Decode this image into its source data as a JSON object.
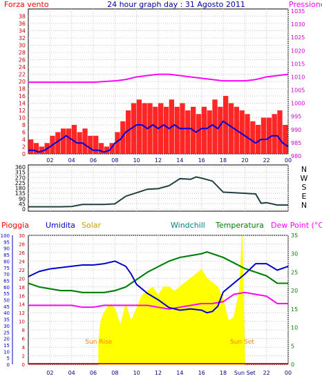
{
  "header": {
    "left_label": "Forza vento",
    "title": "24 hour graph day : 31 Agosto 2011",
    "right_label": "Pressione"
  },
  "colors": {
    "wind": "#ff0000",
    "wind_avg": "#0000dd",
    "pressure": "#ff00ff",
    "direction": "#1f3f3f",
    "rain": "#ff0000",
    "humidity": "#0000cc",
    "solar": "#ffff00",
    "solar_label": "#c8a000",
    "windchill": "#008080",
    "temperature": "#008000",
    "dewpoint": "#ff00ff",
    "sun_event": "#ff8000",
    "frame": "#000000",
    "grid": "#c8c8c8"
  },
  "compass": [
    "N",
    "W",
    "S",
    "E",
    "N"
  ],
  "chart_data": [
    {
      "type": "line",
      "panel": "wind_pressure",
      "x_unit": "hour",
      "xlim": [
        0,
        24
      ],
      "x_ticks": [
        "02",
        "04",
        "06",
        "08",
        "10",
        "12",
        "14",
        "16",
        "18",
        "20",
        "22",
        "00"
      ],
      "ylim_left": [
        0,
        40
      ],
      "y_ticks_left": [
        "0",
        "2",
        "4",
        "6",
        "8",
        "10",
        "12",
        "14",
        "16",
        "18",
        "20",
        "22",
        "24",
        "26",
        "28",
        "30",
        "32",
        "34",
        "36",
        "38"
      ],
      "ylim_right": [
        980,
        1035
      ],
      "y_ticks_right": [
        "980",
        "985",
        "990",
        "995",
        "1000",
        "1005",
        "1010",
        "1015",
        "1020",
        "1025",
        "1030",
        "1035"
      ],
      "series": [
        {
          "name": "Forza vento",
          "axis": "left",
          "x": [
            0,
            0.5,
            1,
            1.5,
            2,
            2.5,
            3,
            3.5,
            4,
            4.5,
            5,
            5.5,
            6,
            6.5,
            7,
            7.5,
            8,
            8.5,
            9,
            9.5,
            10,
            10.5,
            11,
            11.5,
            12,
            12.5,
            13,
            13.5,
            14,
            14.5,
            15,
            15.5,
            16,
            16.5,
            17,
            17.5,
            18,
            18.5,
            19,
            19.5,
            20,
            20.5,
            21,
            21.5,
            22,
            22.5,
            23,
            23.5,
            24
          ],
          "values": [
            4,
            3,
            2,
            3,
            5,
            6,
            7,
            7,
            8,
            6,
            7,
            5,
            5,
            3,
            2,
            3,
            6,
            9,
            12,
            14,
            15,
            14,
            14,
            13,
            14,
            13,
            15,
            13,
            14,
            12,
            13,
            11,
            13,
            12,
            15,
            13,
            16,
            14,
            13,
            12,
            11,
            9,
            8,
            10,
            10,
            11,
            12,
            8,
            6
          ]
        },
        {
          "name": "",
          "axis": "left",
          "x": [
            0,
            0.5,
            1,
            1.5,
            2,
            2.5,
            3,
            3.5,
            4,
            4.5,
            5,
            5.5,
            6,
            6.5,
            7,
            7.5,
            8,
            8.5,
            9,
            9.5,
            10,
            10.5,
            11,
            11.5,
            12,
            12.5,
            13,
            13.5,
            14,
            14.5,
            15,
            15.5,
            16,
            16.5,
            17,
            17.5,
            18,
            18.5,
            19,
            19.5,
            20,
            20.5,
            21,
            21.5,
            22,
            22.5,
            23,
            23.5,
            24
          ],
          "values": [
            1,
            1,
            0.5,
            1,
            2,
            3,
            4,
            5,
            4,
            3,
            3,
            2,
            1,
            1,
            0.5,
            1,
            3,
            4,
            6,
            7,
            8,
            8,
            7,
            8,
            7,
            8,
            7,
            8,
            7,
            7,
            7,
            6,
            7,
            7,
            8,
            7,
            9,
            8,
            7,
            6,
            5,
            4,
            3,
            4,
            4,
            5,
            5,
            3,
            2
          ]
        },
        {
          "name": "Pressione",
          "axis": "right",
          "x": [
            0,
            2,
            4,
            6,
            8,
            9,
            10,
            11,
            12,
            13,
            14,
            15,
            16,
            17,
            18,
            19,
            20,
            21,
            22,
            23,
            24
          ],
          "values": [
            1008,
            1008,
            1008,
            1008,
            1008.5,
            1009,
            1010,
            1010.5,
            1011,
            1011,
            1010.5,
            1010,
            1009.5,
            1009,
            1008.5,
            1008.5,
            1008.5,
            1009,
            1010,
            1010.5,
            1011
          ]
        }
      ]
    },
    {
      "type": "line",
      "panel": "wind_direction",
      "x_unit": "hour",
      "xlim": [
        0,
        24
      ],
      "ylim": [
        0,
        360
      ],
      "y_ticks": [
        "0",
        "45",
        "90",
        "135",
        "180",
        "225",
        "270",
        "315",
        "360"
      ],
      "series": [
        {
          "name": "",
          "x": [
            0,
            1,
            2,
            3,
            4,
            5,
            6,
            7,
            8,
            9,
            10,
            11,
            12,
            13,
            14,
            15,
            15.5,
            16,
            17,
            18,
            19,
            20,
            21,
            21.5,
            22,
            23,
            24
          ],
          "values": [
            20,
            20,
            20,
            20,
            22,
            40,
            40,
            40,
            45,
            110,
            140,
            170,
            175,
            200,
            260,
            255,
            275,
            265,
            240,
            145,
            140,
            135,
            130,
            50,
            55,
            35,
            35
          ]
        }
      ]
    },
    {
      "type": "line",
      "panel": "weather",
      "x_unit": "hour",
      "xlim": [
        0,
        24
      ],
      "x_ticks": [
        "02",
        "04",
        "06",
        "08",
        "10",
        "12",
        "14",
        "16",
        "18",
        "Sun Set",
        "22",
        "00"
      ],
      "axes": {
        "humidity": {
          "label": "Umidita",
          "ylim": [
            0,
            100
          ],
          "ticks": [
            "0",
            "5",
            "10",
            "15",
            "20",
            "25",
            "30",
            "35",
            "40",
            "45",
            "50",
            "55",
            "60",
            "65",
            "70",
            "75",
            "80",
            "85",
            "90",
            "95",
            "100"
          ]
        },
        "rain_solar": {
          "label": "Pioggia",
          "ylim": [
            0,
            30
          ],
          "ticks": [
            "0",
            "2",
            "4",
            "6",
            "8",
            "10",
            "12",
            "14",
            "16",
            "18",
            "20",
            "22",
            "24",
            "26",
            "28",
            "30"
          ]
        },
        "temperature": {
          "label": "Dew Point (°C)",
          "ylim": [
            0,
            35
          ],
          "ticks": [
            "0",
            "5",
            "10",
            "15",
            "20",
            "25",
            "30",
            "35"
          ]
        }
      },
      "series_labels": [
        "Pioggia",
        "Umidita",
        "Solar",
        "Windchill",
        "Temperatura",
        "Dew Point (°C)"
      ],
      "sun_events": [
        {
          "label": "Sun Rise",
          "hour": 6.5
        },
        {
          "label": "Sun Set",
          "hour": 19.75
        }
      ],
      "series": [
        {
          "name": "Umidita",
          "axis": "humidity",
          "x": [
            0,
            1,
            2,
            3,
            4,
            5,
            6,
            7,
            8,
            9,
            9.5,
            10,
            11,
            12,
            13,
            14,
            15,
            16,
            16.5,
            17,
            17.5,
            18,
            19,
            20,
            21,
            22,
            23,
            24
          ],
          "values": [
            68,
            72,
            74,
            75,
            76,
            77,
            77,
            78,
            80,
            76,
            70,
            62,
            55,
            50,
            44,
            42,
            43,
            42,
            40,
            41,
            45,
            56,
            63,
            70,
            78,
            78,
            73,
            76
          ]
        },
        {
          "name": "Solar",
          "axis": "rain_solar",
          "x": [
            6.5,
            6.7,
            7,
            7.5,
            8,
            8.5,
            9,
            9.5,
            10,
            10.5,
            11,
            11.5,
            12,
            12.5,
            13,
            13.5,
            14,
            14.5,
            15,
            15.5,
            16,
            16.5,
            17,
            17.5,
            18,
            18.5,
            19,
            19.5,
            19.75,
            20
          ],
          "values": [
            5,
            10,
            12,
            14,
            13,
            9,
            14,
            10,
            13,
            16,
            17,
            18,
            16,
            18,
            18,
            17,
            18,
            19,
            20,
            21,
            22,
            20,
            19,
            18,
            15,
            10,
            11,
            17,
            30,
            0
          ]
        },
        {
          "name": "Windchill",
          "axis": "temperature",
          "x": [
            0,
            1,
            2,
            3,
            4,
            5,
            6,
            7,
            8,
            9,
            10,
            11,
            12,
            13,
            14,
            15,
            16,
            16.5,
            17,
            18,
            19,
            20,
            21,
            22,
            23,
            24
          ],
          "values": [
            22,
            21,
            20.5,
            20,
            20,
            19.5,
            19.5,
            19.5,
            20,
            21,
            23,
            25,
            26.5,
            28,
            29,
            29.5,
            30,
            30.5,
            30,
            29,
            27.5,
            26,
            25,
            24,
            22,
            22
          ]
        },
        {
          "name": "Temperatura",
          "axis": "temperature",
          "x": [
            0,
            1,
            2,
            3,
            4,
            5,
            6,
            7,
            8,
            9,
            10,
            11,
            12,
            13,
            14,
            15,
            16,
            16.5,
            17,
            18,
            19,
            20,
            21,
            22,
            23,
            24
          ],
          "values": [
            22,
            21,
            20.5,
            20,
            20,
            19.5,
            19.5,
            19.5,
            20,
            21,
            23,
            25,
            26.5,
            28,
            29,
            29.5,
            30,
            30.5,
            30,
            29,
            27.5,
            26,
            25,
            24,
            22,
            22
          ]
        },
        {
          "name": "Dew Point (°C)",
          "axis": "temperature",
          "x": [
            0,
            1,
            2,
            3,
            4,
            5,
            6,
            7,
            8,
            9,
            10,
            11,
            12,
            13,
            14,
            15,
            16,
            17,
            18,
            19,
            20,
            21,
            22,
            23,
            24
          ],
          "values": [
            16,
            16,
            16,
            16,
            16,
            15.5,
            15.5,
            16,
            16,
            16,
            16,
            16,
            15.5,
            15,
            15.5,
            16,
            16.5,
            16.5,
            17,
            19,
            19.5,
            19,
            18.5,
            16.5,
            16.5
          ]
        },
        {
          "name": "Pioggia",
          "axis": "rain_solar",
          "x": [
            0,
            24
          ],
          "values": [
            0,
            0
          ]
        }
      ]
    }
  ]
}
